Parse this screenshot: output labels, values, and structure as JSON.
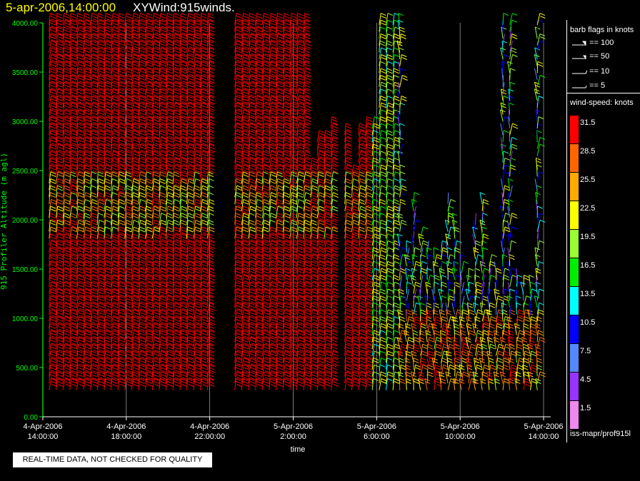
{
  "header": {
    "date": "5-apr-2006,14:00:00",
    "name": "XYWind:915winds."
  },
  "qc_label": "REAL-TIME DATA, NOT CHECKED FOR QUALITY",
  "legend": {
    "flags_title": "barb flags in knots",
    "flags": [
      "== 100",
      "== 50",
      "== 10",
      "== 5"
    ],
    "speed_title": "wind-speed: knots",
    "speed_scale": [
      {
        "label": "31.5",
        "color": "#ff0000"
      },
      {
        "label": "28.5",
        "color": "#ff6600"
      },
      {
        "label": "25.5",
        "color": "#ffaa00"
      },
      {
        "label": "22.5",
        "color": "#ffff00"
      },
      {
        "label": "19.5",
        "color": "#99ff33"
      },
      {
        "label": "16.5",
        "color": "#00ee00"
      },
      {
        "label": "13.5",
        "color": "#00ffff"
      },
      {
        "label": "10.5",
        "color": "#0000ff"
      },
      {
        "label": "7.5",
        "color": "#5588ff"
      },
      {
        "label": "4.5",
        "color": "#9933ff"
      },
      {
        "label": "1.5",
        "color": "#ee88ee"
      }
    ],
    "source": "iss-mapr/prof915l"
  },
  "chart_data": {
    "type": "scatter",
    "ylabel": "915 Profiler Altitude (m agl)",
    "xlabel": "time",
    "ylim": [
      0,
      4000
    ],
    "yticks": [
      "0.00",
      "500.00",
      "1000.00",
      "1500.00",
      "2000.00",
      "2500.00",
      "3000.00",
      "3500.00",
      "4000.00"
    ],
    "xticks": [
      [
        "4-Apr-2006",
        "14:00:00"
      ],
      [
        "4-Apr-2006",
        "18:00:00"
      ],
      [
        "4-Apr-2006",
        "22:00:00"
      ],
      [
        "5-Apr-2006",
        "2:00:00"
      ],
      [
        "5-Apr-2006",
        "6:00:00"
      ],
      [
        "5-Apr-2006",
        "10:00:00"
      ],
      [
        "5-Apr-2006",
        "14:00:00"
      ]
    ],
    "x_range_hours": [
      0,
      24
    ],
    "grid": true,
    "colors": {
      "axis": "#00ff00",
      "ytick_label": "#00ff00",
      "grid": "#ffffff"
    }
  }
}
